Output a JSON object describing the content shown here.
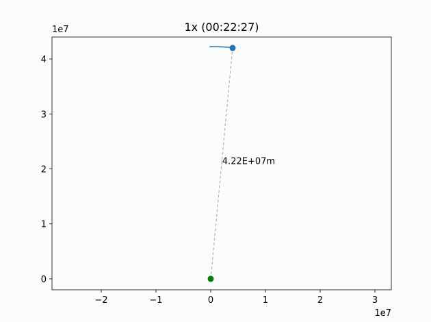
{
  "chart_data": {
    "type": "scatter",
    "title": "1x (00:22:27)",
    "xlabel": "",
    "ylabel": "",
    "xlim": [
      -29000000,
      33000000
    ],
    "ylim": [
      -2000000,
      44000000
    ],
    "x_ticks": [
      -20000000,
      -10000000,
      0,
      10000000,
      20000000,
      30000000
    ],
    "x_tick_labels": [
      "−2",
      "−1",
      "0",
      "1",
      "2",
      "3"
    ],
    "y_ticks": [
      0,
      10000000,
      20000000,
      30000000,
      40000000
    ],
    "y_tick_labels": [
      "0",
      "1",
      "2",
      "3",
      "4"
    ],
    "x_offset_label": "1e7",
    "y_offset_label": "1e7",
    "grid": false,
    "series": [
      {
        "kind": "trajectory-line",
        "color": "#1f77b4",
        "x": [
          -200000,
          1000000,
          2200000,
          3300000,
          4000000
        ],
        "y": [
          42250000,
          42240000,
          42200000,
          42130000,
          42000000
        ]
      },
      {
        "kind": "satellite-point",
        "color": "#1f77b4",
        "x": [
          4000000
        ],
        "y": [
          42000000
        ]
      },
      {
        "kind": "earth-point",
        "color": "#008000",
        "x": [
          0
        ],
        "y": [
          0
        ]
      },
      {
        "kind": "distance-line",
        "color": "#b0b0b0",
        "x": [
          0,
          4000000
        ],
        "y": [
          0,
          42000000
        ]
      }
    ],
    "annotations": [
      {
        "text": "4.22E+07m",
        "x": 2100000,
        "y": 21500000
      }
    ]
  }
}
